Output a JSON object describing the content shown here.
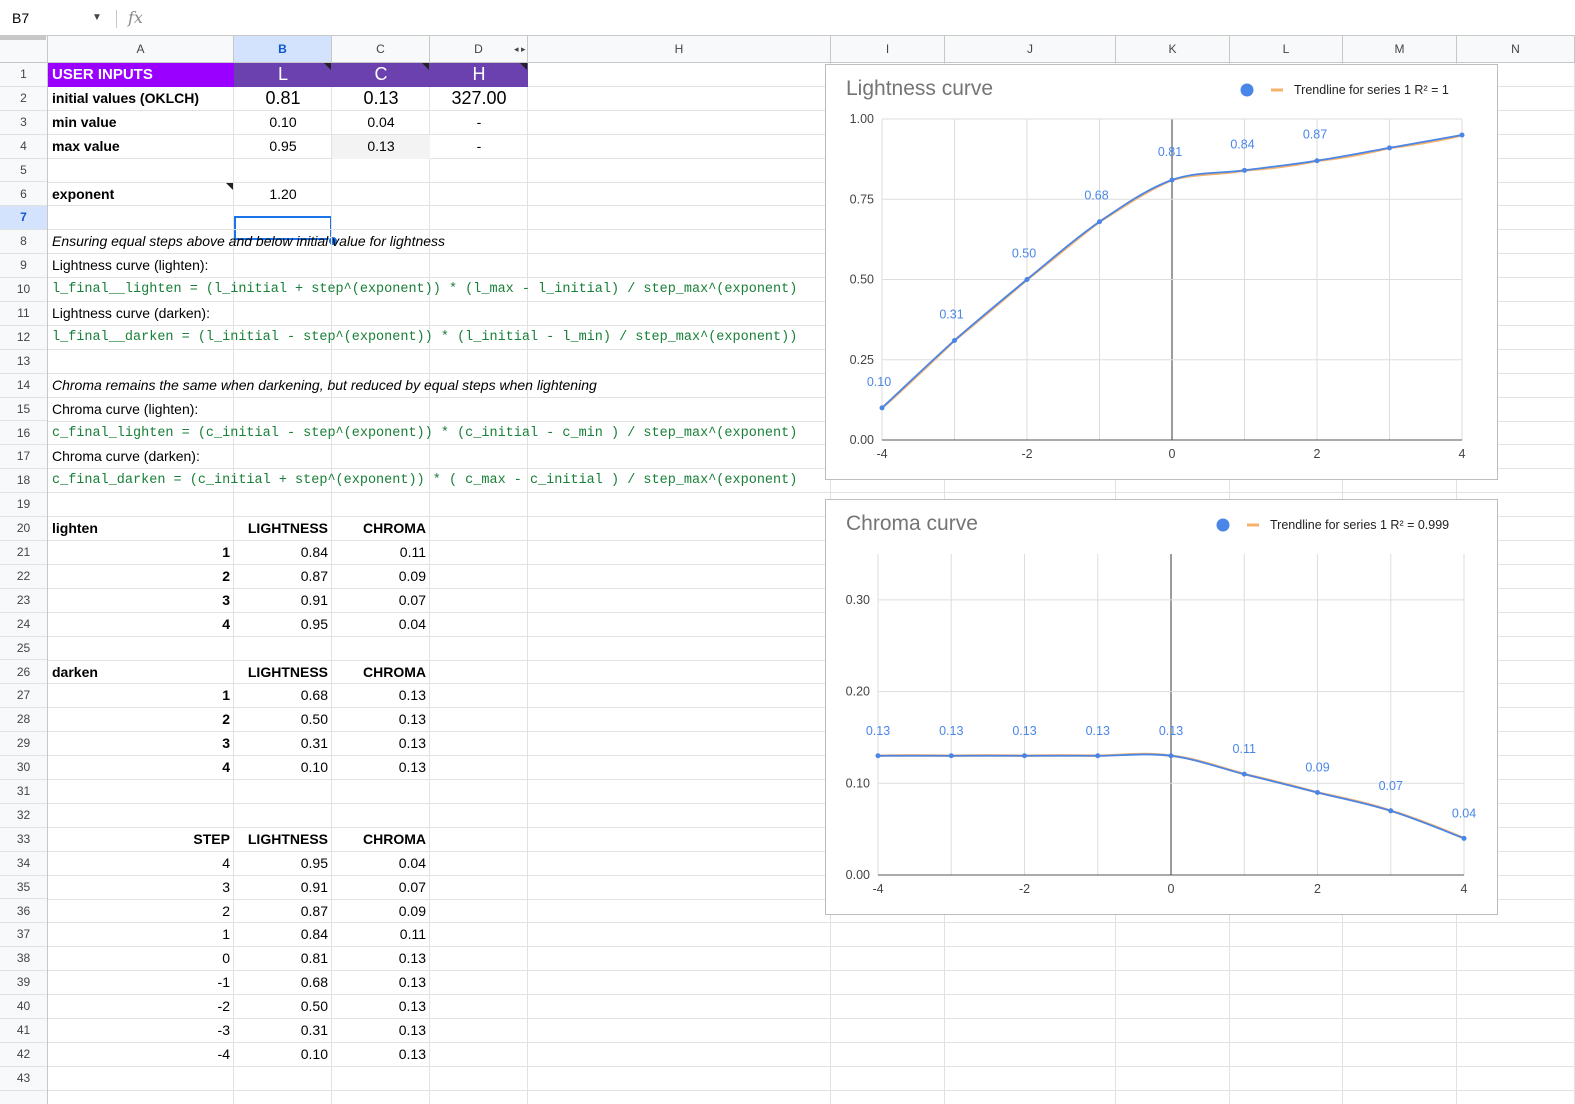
{
  "formula_bar": {
    "cell_ref": "B7",
    "fx_label": "fx",
    "formula": ""
  },
  "columns": [
    "A",
    "B",
    "C",
    "D",
    "H",
    "I",
    "J",
    "K",
    "L",
    "M",
    "N"
  ],
  "rows": [
    "1",
    "2",
    "3",
    "4",
    "5",
    "6",
    "7",
    "8",
    "9",
    "10",
    "11",
    "12",
    "13",
    "14",
    "15",
    "16",
    "17",
    "18",
    "19",
    "20",
    "21",
    "22",
    "23",
    "24",
    "25",
    "26",
    "27",
    "28",
    "29",
    "30",
    "31",
    "32",
    "33",
    "34",
    "35",
    "36",
    "37",
    "38",
    "39",
    "40",
    "41",
    "42",
    "43"
  ],
  "selected": {
    "column": "B",
    "row": "7"
  },
  "colors": {
    "header_purple": "#6b41b0",
    "title_purple": "#9900ff",
    "formula_green": "#188038",
    "series_blue": "#4a86e8",
    "trend_orange": "#f6b26b"
  },
  "inputs": {
    "title": "USER INPUTS",
    "col_L": "L",
    "col_C": "C",
    "col_H": "H",
    "initial_label": "initial values (OKLCH)",
    "initial_L": "0.81",
    "initial_C": "0.13",
    "initial_H": "327.00",
    "min_label": "min value",
    "min_L": "0.10",
    "min_C": "0.04",
    "min_H": "-",
    "max_label": "max value",
    "max_L": "0.95",
    "max_C": "0.13",
    "max_H": "-",
    "exponent_label": "exponent",
    "exponent": "1.20"
  },
  "notes": {
    "r8": "Ensuring equal steps above and below initial value for lightness",
    "r9": "Lightness curve (lighten):",
    "r10": "l_final__lighten = (l_initial + step^(exponent)) * (l_max - l_initial) / step_max^(exponent)",
    "r11": "Lightness curve (darken):",
    "r12": "l_final__darken = (l_initial - step^(exponent)) * (l_initial - l_min) / step_max^(exponent))",
    "r14": "Chroma remains the same when darkening, but reduced by equal steps when lightening",
    "r15": "Chroma curve (lighten):",
    "r16": "c_final_lighten = (c_initial - step^(exponent)) * (c_initial - c_min ) / step_max^(exponent)",
    "r17": "Chroma curve (darken):",
    "r18": "c_final_darken = (c_initial + step^(exponent)) * ( c_max - c_initial ) / step_max^(exponent)"
  },
  "lighten": {
    "label": "lighten",
    "h_lightness": "LIGHTNESS",
    "h_chroma": "CHROMA",
    "rows": [
      [
        "1",
        "0.84",
        "0.11"
      ],
      [
        "2",
        "0.87",
        "0.09"
      ],
      [
        "3",
        "0.91",
        "0.07"
      ],
      [
        "4",
        "0.95",
        "0.04"
      ]
    ]
  },
  "darken": {
    "label": "darken",
    "h_lightness": "LIGHTNESS",
    "h_chroma": "CHROMA",
    "rows": [
      [
        "1",
        "0.68",
        "0.13"
      ],
      [
        "2",
        "0.50",
        "0.13"
      ],
      [
        "3",
        "0.31",
        "0.13"
      ],
      [
        "4",
        "0.10",
        "0.13"
      ]
    ]
  },
  "steps": {
    "h_step": "STEP",
    "h_lightness": "LIGHTNESS",
    "h_chroma": "CHROMA",
    "rows": [
      [
        "4",
        "0.95",
        "0.04"
      ],
      [
        "3",
        "0.91",
        "0.07"
      ],
      [
        "2",
        "0.87",
        "0.09"
      ],
      [
        "1",
        "0.84",
        "0.11"
      ],
      [
        "0",
        "0.81",
        "0.13"
      ],
      [
        "-1",
        "0.68",
        "0.13"
      ],
      [
        "-2",
        "0.50",
        "0.13"
      ],
      [
        "-3",
        "0.31",
        "0.13"
      ],
      [
        "-4",
        "0.10",
        "0.13"
      ]
    ]
  },
  "chart_data": [
    {
      "type": "scatter",
      "title": "Lightness curve",
      "legend": "Trendline for series 1 R² = 1",
      "legend_position": "top-right",
      "x": [
        -4,
        -3,
        -2,
        -1,
        0,
        1,
        2,
        3,
        4
      ],
      "y": [
        0.1,
        0.31,
        0.5,
        0.68,
        0.81,
        0.84,
        0.87,
        0.91,
        0.95
      ],
      "point_labels": [
        "0.10",
        "0.31",
        "0.50",
        "0.68",
        "0.81",
        "0.84",
        "0.87",
        "",
        ""
      ],
      "xlim": [
        -4,
        4
      ],
      "ylim": [
        0,
        1
      ],
      "x_ticks": [
        "-4",
        "-2",
        "0",
        "2",
        "4"
      ],
      "y_ticks": [
        "0.00",
        "0.25",
        "0.50",
        "0.75",
        "1.00"
      ],
      "grid": true
    },
    {
      "type": "scatter",
      "title": "Chroma curve",
      "legend": "Trendline for series 1 R² = 0.999",
      "legend_position": "top-right",
      "x": [
        -4,
        -3,
        -2,
        -1,
        0,
        1,
        2,
        3,
        4
      ],
      "y": [
        0.13,
        0.13,
        0.13,
        0.13,
        0.13,
        0.11,
        0.09,
        0.07,
        0.04
      ],
      "point_labels": [
        "0.13",
        "0.13",
        "0.13",
        "0.13",
        "0.13",
        "0.11",
        "0.09",
        "0.07",
        "0.04"
      ],
      "xlim": [
        -4,
        4
      ],
      "ylim": [
        0,
        0.35
      ],
      "x_ticks": [
        "-4",
        "-2",
        "0",
        "2",
        "4"
      ],
      "y_ticks": [
        "0.00",
        "0.10",
        "0.20",
        "0.30"
      ],
      "grid": true
    }
  ]
}
